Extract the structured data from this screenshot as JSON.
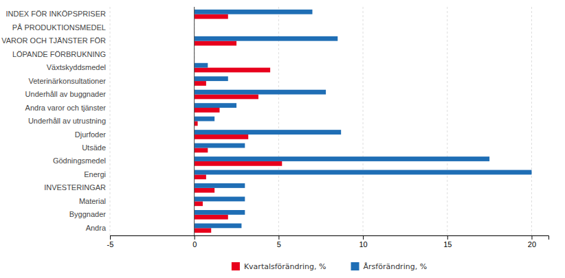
{
  "chart_data": {
    "type": "bar",
    "orientation": "horizontal",
    "categories": [
      "INDEX FÖR INKÖPSPRISER",
      "PÅ PRODUKTIONSMEDEL",
      "VAROR OCH TJÄNSTER FÖR",
      "LÖPANDE FÖRBRUKNING",
      "Växtskyddsmedel",
      "Veterinärkonsultationer",
      "Underhåll av buggnader",
      "Andra varor och tjänster",
      "Underhåll av utrustning",
      "Djurfoder",
      "Utsäde",
      "Gödningsmedel",
      "Energi",
      "INVESTERINGAR",
      "Material",
      "Byggnader",
      "Andra"
    ],
    "series": [
      {
        "name": "Kvartalsförändring, %",
        "color": "#e8001c",
        "values": [
          2.0,
          null,
          2.5,
          null,
          4.5,
          0.7,
          3.8,
          1.5,
          0.2,
          3.2,
          0.8,
          5.2,
          0.7,
          1.2,
          0.5,
          2.0,
          1.0
        ]
      },
      {
        "name": "Årsförändring, %",
        "color": "#1f6eb5",
        "values": [
          7.0,
          null,
          8.5,
          null,
          0.8,
          2.0,
          7.8,
          2.5,
          1.2,
          8.7,
          3.0,
          17.5,
          20.0,
          3.0,
          3.0,
          3.0,
          2.8
        ]
      }
    ],
    "xlim": [
      -5,
      21
    ],
    "xticks": [
      -5,
      0,
      5,
      10,
      15,
      20
    ],
    "grid": true,
    "legend": "bottom"
  }
}
